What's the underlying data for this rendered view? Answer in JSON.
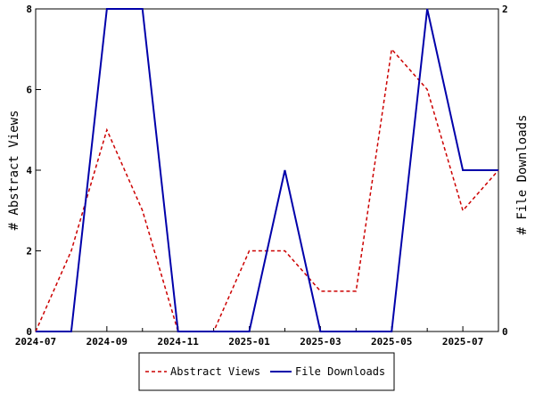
{
  "chart_data": {
    "type": "line",
    "title": "",
    "x": [
      "2024-07",
      "2024-08",
      "2024-09",
      "2024-10",
      "2024-11",
      "2024-12",
      "2025-01",
      "2025-02",
      "2025-03",
      "2025-04",
      "2025-05",
      "2025-06",
      "2025-07",
      "2025-08"
    ],
    "x_tick_labels": [
      "2024-07",
      "2024-09",
      "2024-11",
      "2025-01",
      "2025-03",
      "2025-05",
      "2025-07"
    ],
    "ylabel_left": "# Abstract Views",
    "ylabel_right": "# File Downloads",
    "ylim_left": [
      0,
      8
    ],
    "ylim_right": [
      0,
      2
    ],
    "yticks_left": [
      "0",
      "2",
      "4",
      "6",
      "8"
    ],
    "yticks_right": [
      "0",
      "2"
    ],
    "grid": false,
    "legend_position": "bottom-center",
    "series": [
      {
        "name": "Abstract Views",
        "axis": "left",
        "color": "#cc0000",
        "style": "dashed",
        "values": [
          0,
          2,
          5,
          3,
          0,
          0,
          2,
          2,
          1,
          1,
          7,
          6,
          3,
          4
        ]
      },
      {
        "name": "File Downloads",
        "axis": "right",
        "color": "#0000aa",
        "style": "solid",
        "values": [
          0,
          0,
          2,
          2,
          0,
          0,
          0,
          1,
          0,
          0,
          0,
          2,
          1,
          1
        ]
      }
    ]
  }
}
